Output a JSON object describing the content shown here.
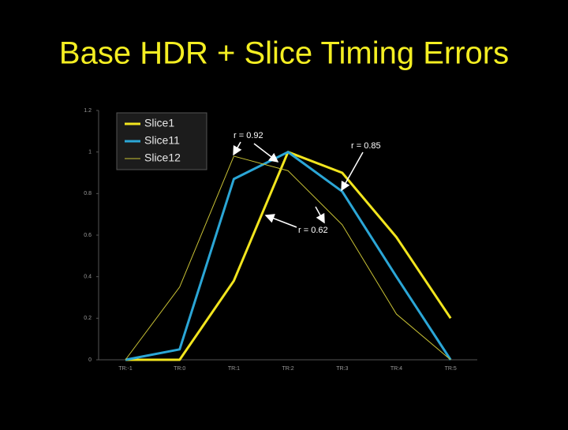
{
  "chart_data": {
    "type": "line",
    "title": "Base HDR + Slice Timing Errors",
    "categories": [
      "TR:-1",
      "TR:0",
      "TR:1",
      "TR:2",
      "TR:3",
      "TR:4",
      "TR:5"
    ],
    "series": [
      {
        "name": "Slice1",
        "color": "#f2e51e",
        "values": [
          0,
          0,
          0.38,
          1.0,
          0.9,
          0.59,
          0.2
        ]
      },
      {
        "name": "Slice11",
        "color": "#2ba6d6",
        "values": [
          0,
          0.05,
          0.87,
          1.0,
          0.81,
          0.4,
          0
        ]
      },
      {
        "name": "Slice12",
        "color": "#c9c235",
        "values": [
          0,
          0.35,
          0.98,
          0.91,
          0.65,
          0.22,
          0
        ]
      }
    ],
    "ylim": [
      0,
      1.2
    ],
    "yticks": [
      0,
      0.2,
      0.4,
      0.6,
      0.8,
      1,
      1.2
    ],
    "annotations": [
      "r = 0.92",
      "r = 0.85",
      "r = 0.62"
    ]
  }
}
